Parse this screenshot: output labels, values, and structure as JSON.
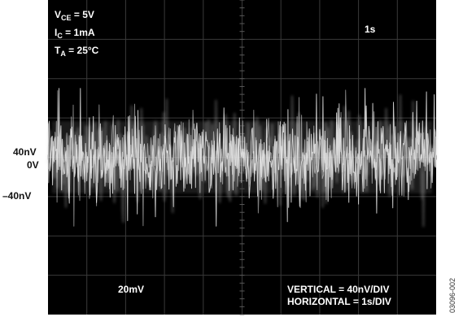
{
  "chart_data": {
    "type": "line",
    "style": "oscilloscope capture",
    "background_color": "#000000",
    "trace_color": "#e8e8e8",
    "grid": true,
    "grid_divisions": {
      "x": 10,
      "y": 8
    },
    "y_tick_labels": [
      "40nV",
      "0V",
      "–40nV"
    ],
    "y_tick_values_nV": [
      40,
      0,
      -40
    ],
    "xlim_s": [
      0,
      10
    ],
    "ylim_nV": [
      -160,
      160
    ],
    "conditions": [
      {
        "main": "V",
        "sub": "CE",
        "rest": " = 5V"
      },
      {
        "main": "I",
        "sub": "C",
        "rest": " = 1mA"
      },
      {
        "main": "T",
        "sub": "A",
        "rest": " = 25°C"
      }
    ],
    "time_marker": "1s",
    "channel_scale": "20mV",
    "scale_lines": [
      "VERTICAL = 40nV/DIV",
      "HORIZONTAL = 1s/DIV"
    ],
    "figure_id": "03096-002",
    "trace_amplitude_nV": 35
  }
}
